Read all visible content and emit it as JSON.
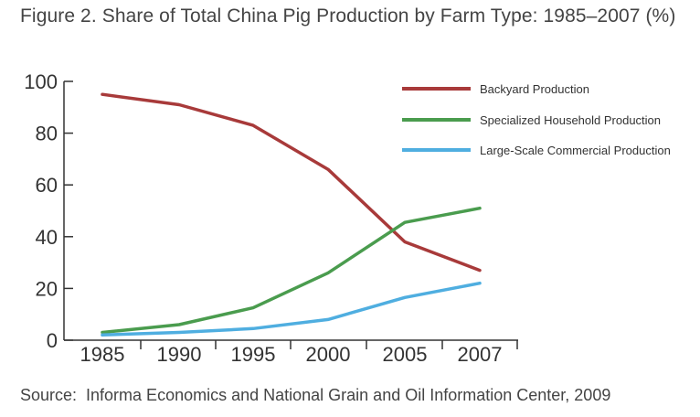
{
  "title": "Figure 2. Share of Total China Pig Production by Farm Type: 1985–2007 (%)",
  "source": "Source:  Informa Economics and National Grain and Oil Information Center, 2009",
  "chart_data": {
    "type": "line",
    "x": [
      "1985",
      "1990",
      "1995",
      "2000",
      "2005",
      "2007"
    ],
    "ylim": [
      0,
      100
    ],
    "yticks": [
      0,
      20,
      40,
      60,
      80,
      100
    ],
    "grid": false,
    "legend_position": "top-right",
    "series": [
      {
        "name": "Backyard Production",
        "color": "#a83a3a",
        "values": [
          95,
          91,
          83,
          66,
          38,
          27
        ]
      },
      {
        "name": "Specialized Household Production",
        "color": "#4a9c4e",
        "values": [
          3,
          6,
          12.5,
          26,
          45.5,
          51
        ]
      },
      {
        "name": "Large-Scale Commercial Production",
        "color": "#4faee0",
        "values": [
          2,
          3,
          4.5,
          8,
          16.5,
          22
        ]
      }
    ]
  }
}
